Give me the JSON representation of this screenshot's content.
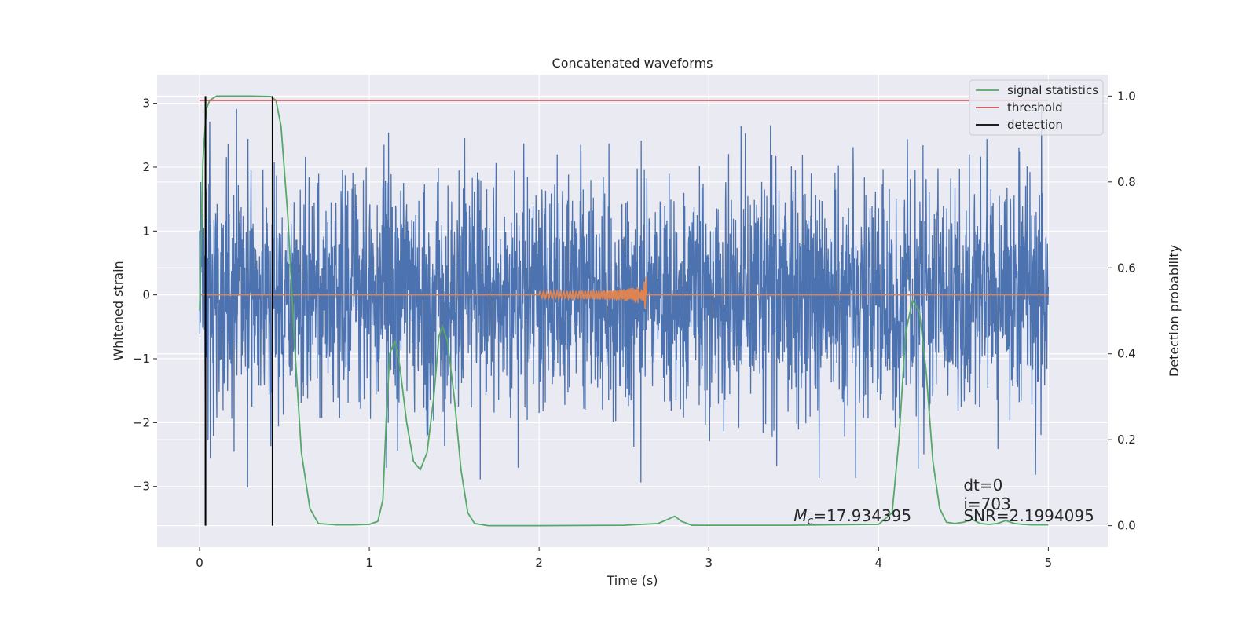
{
  "chart_data": {
    "type": "line",
    "title": "Concatenated waveforms",
    "xlabel": "Time (s)",
    "ylabel": "Whitened strain",
    "ylabel_right": "Detection probability",
    "xlim": [
      -0.25,
      5.35
    ],
    "ylim": [
      -3.95,
      3.45
    ],
    "ylim_right": [
      -0.05,
      1.05
    ],
    "xticks": [
      0,
      1,
      2,
      3,
      4,
      5
    ],
    "xtick_labels": [
      "0",
      "1",
      "2",
      "3",
      "4",
      "5"
    ],
    "yticks": [
      -3,
      -2,
      -1,
      0,
      1,
      2,
      3
    ],
    "ytick_labels": [
      "−3",
      "−2",
      "−1",
      "0",
      "1",
      "2",
      "3"
    ],
    "yticks_right": [
      0.0,
      0.2,
      0.4,
      0.6,
      0.8,
      1.0
    ],
    "ytick_labels_right": [
      "0.0",
      "0.2",
      "0.4",
      "0.6",
      "0.8",
      "1.0"
    ],
    "grid": true,
    "legend_placement": "top-right",
    "colors": {
      "strain": "#4c72b0",
      "template": "#dd8452",
      "signal_statistics": "#55a868",
      "threshold": "#c44e52",
      "detection": "#000000",
      "plot_bg": "#eaeaf2",
      "grid": "#ffffff"
    },
    "series": [
      {
        "name": "",
        "axis": "left",
        "kind": "noise",
        "x_range": [
          0,
          5
        ],
        "amplitude_typical": 0.9,
        "amplitude_max": 3.3
      },
      {
        "name": "",
        "axis": "left",
        "kind": "chirp",
        "x_range": [
          2.0,
          2.63
        ],
        "peak_amplitude": 0.5
      },
      {
        "name": "signal statistics",
        "axis": "right",
        "x": [
          0.0,
          0.02,
          0.04,
          0.06,
          0.1,
          0.2,
          0.3,
          0.42,
          0.45,
          0.48,
          0.52,
          0.56,
          0.6,
          0.65,
          0.7,
          0.8,
          0.9,
          1.0,
          1.05,
          1.08,
          1.1,
          1.12,
          1.15,
          1.18,
          1.22,
          1.26,
          1.3,
          1.34,
          1.38,
          1.41,
          1.43,
          1.46,
          1.5,
          1.54,
          1.58,
          1.62,
          1.7,
          2.0,
          2.5,
          2.7,
          2.76,
          2.8,
          2.84,
          2.9,
          3.5,
          4.0,
          4.08,
          4.12,
          4.16,
          4.2,
          4.24,
          4.28,
          4.32,
          4.36,
          4.4,
          4.45,
          4.5,
          4.55,
          4.6,
          4.65,
          4.7,
          4.75,
          4.8,
          4.85,
          4.9,
          5.0
        ],
        "y": [
          0.5,
          0.85,
          0.97,
          0.99,
          1.0,
          1.0,
          1.0,
          0.999,
          0.99,
          0.93,
          0.72,
          0.42,
          0.17,
          0.04,
          0.005,
          0.002,
          0.002,
          0.003,
          0.01,
          0.06,
          0.25,
          0.4,
          0.43,
          0.37,
          0.24,
          0.15,
          0.13,
          0.17,
          0.3,
          0.44,
          0.465,
          0.43,
          0.3,
          0.13,
          0.03,
          0.005,
          0.0,
          0.0,
          0.001,
          0.005,
          0.015,
          0.022,
          0.01,
          0.001,
          0.001,
          0.003,
          0.03,
          0.2,
          0.45,
          0.525,
          0.5,
          0.36,
          0.15,
          0.04,
          0.008,
          0.005,
          0.008,
          0.015,
          0.005,
          0.003,
          0.005,
          0.012,
          0.005,
          0.003,
          0.002,
          0.002
        ]
      },
      {
        "name": "threshold",
        "axis": "right",
        "x": [
          0,
          5
        ],
        "y": [
          0.99,
          0.99
        ]
      },
      {
        "name": "detection",
        "axis": "right",
        "kind": "vlines",
        "x": [
          0.035,
          0.43
        ],
        "y_range": [
          0.0,
          1.0
        ]
      }
    ],
    "annotations": [
      {
        "math_base": "M",
        "math_sub": "c",
        "text": "=17.934395",
        "x": 3.5,
        "y_frac": 0.055
      },
      {
        "text": "dt=0",
        "x": 4.5,
        "y_frac": 0.12
      },
      {
        "text": "i=703",
        "x": 4.5,
        "y_frac": 0.08
      },
      {
        "text": "SNR=2.1994095",
        "x": 4.5,
        "y_frac": 0.055
      }
    ]
  }
}
